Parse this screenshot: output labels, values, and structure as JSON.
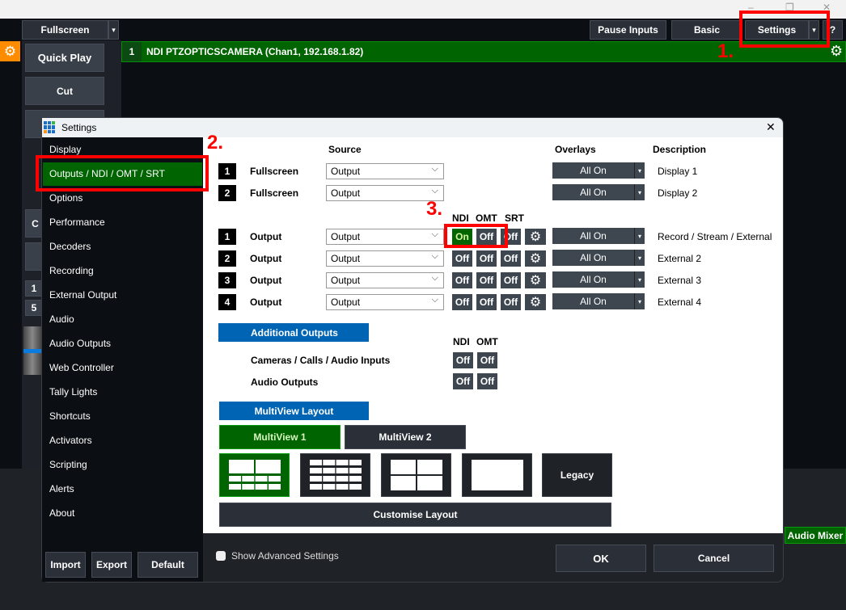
{
  "window": {
    "minimize": "–",
    "maximize": "❐",
    "close": "✕"
  },
  "toolbar": {
    "fullscreen": "Fullscreen",
    "pause_inputs": "Pause Inputs",
    "basic": "Basic",
    "settings": "Settings",
    "help": "?",
    "dropdown": "▾"
  },
  "left_panel": {
    "quick_play": "Quick Play",
    "cut": "Cut",
    "partial_c": "C",
    "num1": "1",
    "num5": "5"
  },
  "input_bar": {
    "number": "1",
    "title": "NDI PTZOPTICSCAMERA (Chan1, 192.168.1.82)"
  },
  "audio_mixer": "Audio Mixer",
  "annotations": {
    "step1": "1.",
    "step2": "2.",
    "step3": "3."
  },
  "dialog": {
    "title": "Settings",
    "close": "✕",
    "nav": [
      "Display",
      "Outputs / NDI / OMT / SRT",
      "Options",
      "Performance",
      "Decoders",
      "Recording",
      "External Output",
      "Audio",
      "Audio Outputs",
      "Web Controller",
      "Tally Lights",
      "Shortcuts",
      "Activators",
      "Scripting",
      "Alerts",
      "About"
    ],
    "selected_nav": "Outputs / NDI / OMT / SRT",
    "nav_buttons": {
      "import": "Import",
      "export": "Export",
      "default": "Default"
    },
    "headers": {
      "source": "Source",
      "overlays": "Overlays",
      "description": "Description",
      "ndi": "NDI",
      "omt": "OMT",
      "srt": "SRT"
    },
    "fullscreen_rows": [
      {
        "num": "1",
        "label": "Fullscreen",
        "source": "Output",
        "overlays": "All On",
        "description": "Display 1"
      },
      {
        "num": "2",
        "label": "Fullscreen",
        "source": "Output",
        "overlays": "All On",
        "description": "Display 2"
      }
    ],
    "output_rows": [
      {
        "num": "1",
        "label": "Output",
        "source": "Output",
        "ndi": "On",
        "omt": "Off",
        "srt": "Off",
        "overlays": "All On",
        "description": "Record / Stream / External"
      },
      {
        "num": "2",
        "label": "Output",
        "source": "Output",
        "ndi": "Off",
        "omt": "Off",
        "srt": "Off",
        "overlays": "All On",
        "description": "External 2"
      },
      {
        "num": "3",
        "label": "Output",
        "source": "Output",
        "ndi": "Off",
        "omt": "Off",
        "srt": "Off",
        "overlays": "All On",
        "description": "External 3"
      },
      {
        "num": "4",
        "label": "Output",
        "source": "Output",
        "ndi": "Off",
        "omt": "Off",
        "srt": "Off",
        "overlays": "All On",
        "description": "External 4"
      }
    ],
    "additional_outputs": {
      "title": "Additional Outputs",
      "rows": [
        {
          "label": "Cameras / Calls / Audio Inputs",
          "ndi": "Off",
          "omt": "Off"
        },
        {
          "label": "Audio Outputs",
          "ndi": "Off",
          "omt": "Off"
        }
      ]
    },
    "multiview": {
      "title": "MultiView Layout",
      "tab1": "MultiView 1",
      "tab2": "MultiView 2",
      "legacy": "Legacy",
      "customise": "Customise Layout",
      "selected_layout": "2 large + 8 small"
    },
    "footer": {
      "advanced": "Show Advanced Settings",
      "advanced_checked": false,
      "ok": "OK",
      "cancel": "Cancel"
    }
  },
  "colors": {
    "green": "#006400",
    "blue": "#0064b4",
    "orange": "#ff8c00",
    "annotation": "#ff0000"
  }
}
